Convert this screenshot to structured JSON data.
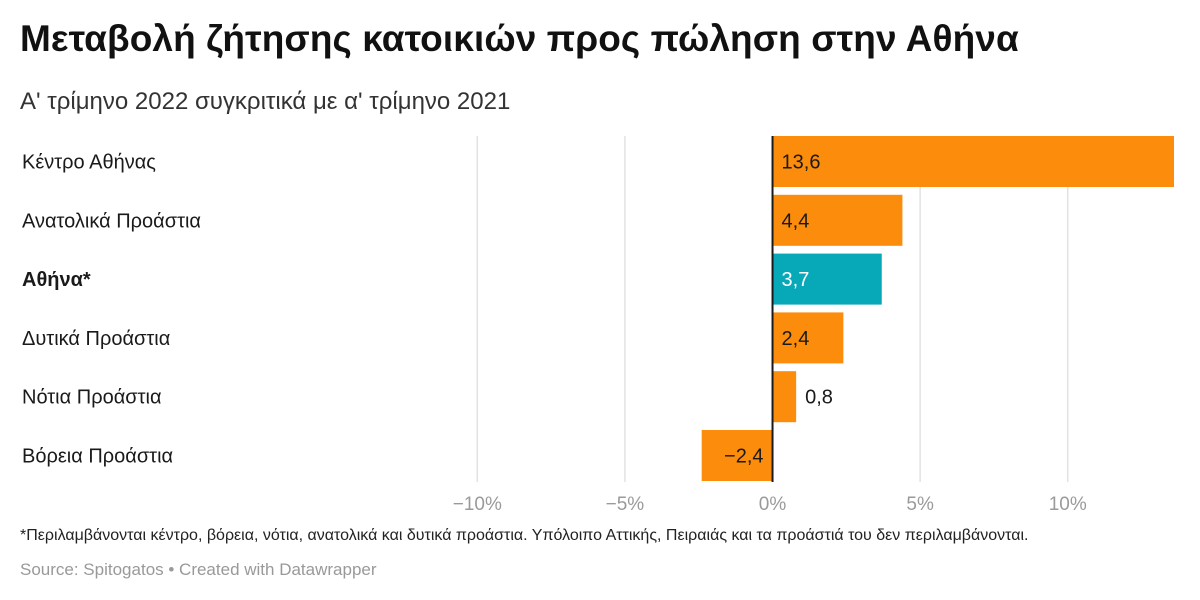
{
  "title": "Μεταβολή ζήτησης κατοικιών προς πώληση στην Αθήνα",
  "subtitle": "Α' τρίμηνο 2022 συγκριτικά με α' τρίμηνο 2021",
  "note": "*Περιλαμβάνονται κέντρο, βόρεια, νότια, ανατολικά και δυτικά προάστια. Υπόλοιπο Αττικής, Πειραιάς και τα προάστιά του δεν περιλαμβάνονται.",
  "source": "Source: Spitogatos • Created with Datawrapper",
  "colors": {
    "bar": "#fc8c0c",
    "highlight": "#07a8b8",
    "grid": "#e2e2e2",
    "axis": "#1a1a1a",
    "tick": "#9a9a9a"
  },
  "chart_data": {
    "type": "bar",
    "orientation": "horizontal",
    "categories": [
      "Κέντρο Αθήνας",
      "Ανατολικά Προάστια",
      "Αθήνα*",
      "Δυτικά Προάστια",
      "Νότια Προάστια",
      "Βόρεια Προάστια"
    ],
    "values": [
      13.6,
      4.4,
      3.7,
      2.4,
      0.8,
      -2.4
    ],
    "value_labels": [
      "13,6",
      "4,4",
      "3,7",
      "2,4",
      "0,8",
      "−2,4"
    ],
    "highlight_index": 2,
    "xlim": [
      -13.5,
      13.6
    ],
    "xticks": [
      -10,
      -5,
      0,
      5,
      10
    ],
    "xtick_labels": [
      "−10%",
      "−5%",
      "0%",
      "5%",
      "10%"
    ],
    "title": "Μεταβολή ζήτησης κατοικιών προς πώληση στην Αθήνα",
    "xlabel": "",
    "ylabel": ""
  }
}
